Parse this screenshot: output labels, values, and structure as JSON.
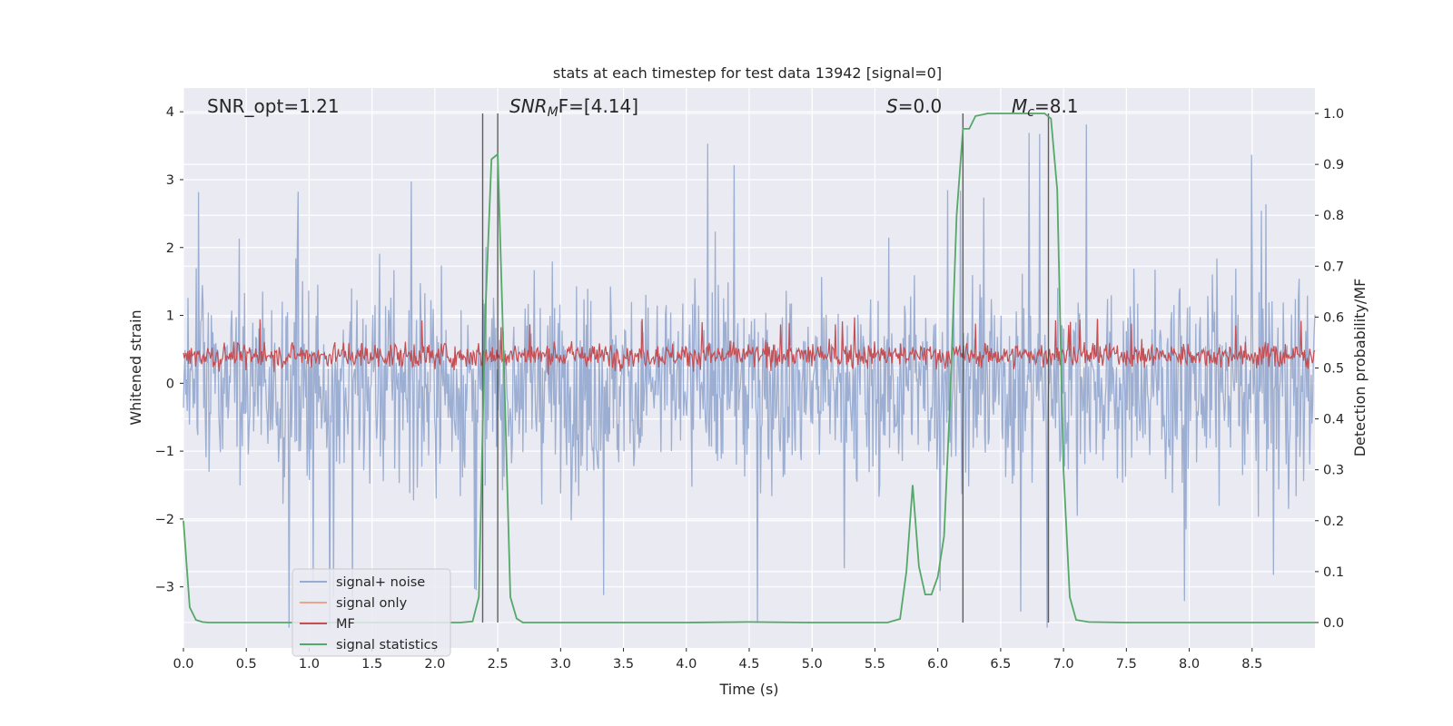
{
  "chart_data": {
    "type": "line",
    "title": "stats at each timestep for test data 13942 [signal=0]",
    "xlabel": "Time (s)",
    "ylabel_left": "Whitened strain",
    "ylabel_right": "Detection probability/MF",
    "xlim": [
      0.0,
      9.0
    ],
    "ylim_left": [
      -3.9,
      4.35
    ],
    "ylim_right": [
      -0.05,
      1.05
    ],
    "xticks": [
      "0.0",
      "0.5",
      "1.0",
      "1.5",
      "2.0",
      "2.5",
      "3.0",
      "3.5",
      "4.0",
      "4.5",
      "5.0",
      "5.5",
      "6.0",
      "6.5",
      "7.0",
      "7.5",
      "8.0",
      "8.5"
    ],
    "yticks_left": [
      "4",
      "3",
      "2",
      "1",
      "0",
      "−1",
      "−2",
      "−3"
    ],
    "yticks_right": [
      "1.0",
      "0.9",
      "0.8",
      "0.7",
      "0.6",
      "0.5",
      "0.4",
      "0.3",
      "0.2",
      "0.1",
      "0.0"
    ],
    "grid": true,
    "legend_position": "lower-left",
    "legend": [
      {
        "label": "signal+ noise",
        "color": "#98abd0"
      },
      {
        "label": "signal only",
        "color": "#eaa58c"
      },
      {
        "label": "MF",
        "color": "#c44e52"
      },
      {
        "label": "signal statistics",
        "color": "#55a868"
      }
    ],
    "annotations": {
      "snr_opt": "SNR_opt=1.21",
      "snr_mf_main": "SNR",
      "snr_mf_sub": "M",
      "snr_mf_rest": "F=[4.14]",
      "s_main": "S",
      "s_rest": "=0.0",
      "mc_main": "M",
      "mc_sub": "c",
      "mc_rest": "=8.1"
    },
    "vertical_lines_x": [
      2.38,
      2.5,
      6.2,
      6.88
    ],
    "series": [
      {
        "name": "signal statistics",
        "axis": "right",
        "x": [
          0.0,
          0.05,
          0.1,
          0.15,
          0.2,
          0.3,
          0.5,
          1.0,
          1.5,
          2.0,
          2.2,
          2.3,
          2.35,
          2.4,
          2.45,
          2.5,
          2.55,
          2.6,
          2.65,
          2.7,
          2.8,
          3.0,
          4.0,
          4.5,
          5.0,
          5.5,
          5.6,
          5.7,
          5.75,
          5.8,
          5.85,
          5.9,
          5.95,
          6.0,
          6.05,
          6.1,
          6.15,
          6.2,
          6.25,
          6.3,
          6.4,
          6.5,
          6.6,
          6.7,
          6.8,
          6.85,
          6.9,
          6.95,
          7.0,
          7.05,
          7.1,
          7.2,
          7.5,
          8.0,
          8.5,
          9.0
        ],
        "y": [
          0.2,
          0.03,
          0.005,
          0.001,
          0.0,
          0.0,
          0.0,
          0.0,
          0.0,
          0.0,
          0.0,
          0.002,
          0.05,
          0.6,
          0.91,
          0.92,
          0.5,
          0.05,
          0.008,
          0.0,
          0.0,
          0.0,
          0.0,
          0.001,
          0.0,
          0.0,
          0.0,
          0.007,
          0.1,
          0.27,
          0.11,
          0.055,
          0.055,
          0.09,
          0.17,
          0.45,
          0.8,
          0.97,
          0.97,
          0.995,
          1.0,
          1.0,
          1.0,
          1.0,
          1.0,
          1.0,
          0.99,
          0.85,
          0.3,
          0.05,
          0.005,
          0.001,
          0.0,
          0.0,
          0.0,
          0.0
        ]
      },
      {
        "name": "signal+ noise",
        "axis": "left",
        "x_range": [
          0.0,
          9.0
        ],
        "y_range": [
          -3.6,
          4.0
        ]
      },
      {
        "name": "MF",
        "axis": "right",
        "x_range": [
          0.0,
          9.0
        ],
        "y_range": [
          0.47,
          0.6
        ]
      }
    ]
  }
}
